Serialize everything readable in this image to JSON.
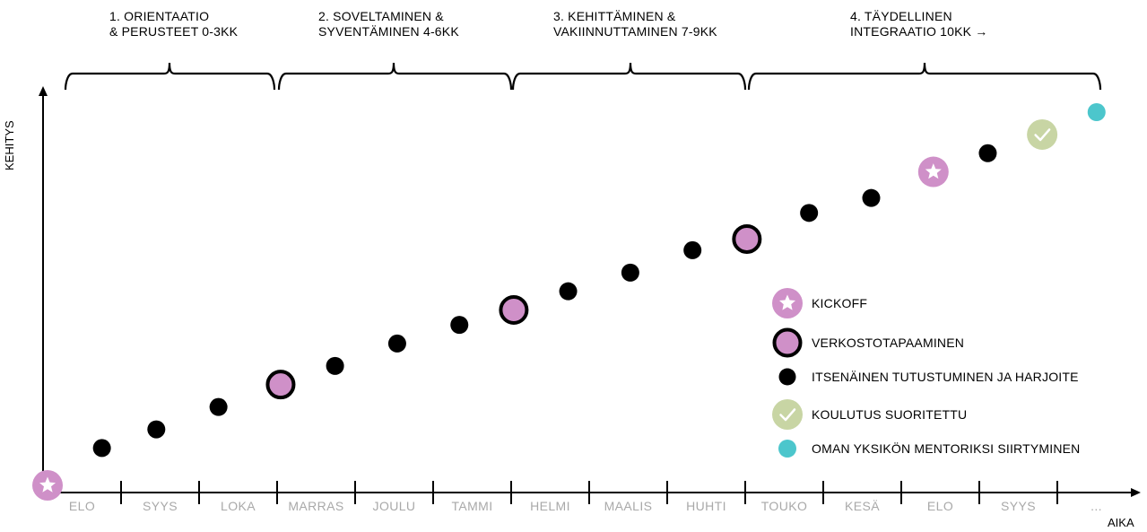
{
  "chart_data": {
    "type": "scatter",
    "phases": [
      {
        "line1": "1. ORIENTAATIO",
        "line2": "& PERUSTEET 0-3KK"
      },
      {
        "line1": "2. SOVELTAMINEN &",
        "line2": "SYVENTÄMINEN 4-6KK"
      },
      {
        "line1": "3. KEHITTÄMINEN &",
        "line2": "VAKIINNUTTAMINEN 7-9KK"
      },
      {
        "line1": "4. TÄYDELLINEN",
        "line2": "INTEGRAATIO 10KK →"
      }
    ],
    "months": [
      "ELO",
      "SYYS",
      "LOKA",
      "MARRAS",
      "JOULU",
      "TAMMI",
      "HELMI",
      "MAALIS",
      "HUHTI",
      "TOUKO",
      "KESÄ",
      "ELO",
      "SYYS",
      "..."
    ],
    "xlabel": "AIKA",
    "ylabel": "KEHITYS",
    "points": [
      {
        "x": 0,
        "y": 0,
        "type": "kickoff"
      },
      {
        "x": 0.7,
        "y": 1.0,
        "type": "independent"
      },
      {
        "x": 1.4,
        "y": 1.5,
        "type": "independent"
      },
      {
        "x": 2.2,
        "y": 2.1,
        "type": "independent"
      },
      {
        "x": 3.0,
        "y": 2.7,
        "type": "network"
      },
      {
        "x": 3.7,
        "y": 3.2,
        "type": "independent"
      },
      {
        "x": 4.5,
        "y": 3.8,
        "type": "independent"
      },
      {
        "x": 5.3,
        "y": 4.3,
        "type": "independent"
      },
      {
        "x": 6.0,
        "y": 4.7,
        "type": "network"
      },
      {
        "x": 6.7,
        "y": 5.2,
        "type": "independent"
      },
      {
        "x": 7.5,
        "y": 5.7,
        "type": "independent"
      },
      {
        "x": 8.3,
        "y": 6.3,
        "type": "independent"
      },
      {
        "x": 9.0,
        "y": 6.6,
        "type": "network"
      },
      {
        "x": 9.8,
        "y": 7.3,
        "type": "independent"
      },
      {
        "x": 10.6,
        "y": 7.7,
        "type": "independent"
      },
      {
        "x": 11.4,
        "y": 8.4,
        "type": "kickoff"
      },
      {
        "x": 12.1,
        "y": 8.9,
        "type": "independent"
      },
      {
        "x": 12.8,
        "y": 9.4,
        "type": "completed"
      },
      {
        "x": 13.5,
        "y": 10.0,
        "type": "mentor"
      }
    ],
    "legend": [
      {
        "type": "kickoff",
        "label": "KICKOFF"
      },
      {
        "type": "network",
        "label": "VERKOSTOTAPAAMINEN"
      },
      {
        "type": "independent",
        "label": "ITSENÄINEN TUTUSTUMINEN JA HARJOITE"
      },
      {
        "type": "completed",
        "label": "KOULUTUS SUORITETTU"
      },
      {
        "type": "mentor",
        "label": "OMAN YKSIKÖN MENTORIKSI SIIRTYMINEN"
      }
    ],
    "legend_position": "bottom-right",
    "grid": false
  },
  "colors": {
    "kickoff": "#cf90c8",
    "network_fill": "#cf90c8",
    "independent": "#000000",
    "completed": "#c8d5a4",
    "mentor": "#4cc6cc",
    "month_text": "#a9a9a9",
    "axis": "#000000"
  },
  "icons": {
    "kickoff": "star-icon",
    "completed": "check-icon"
  }
}
